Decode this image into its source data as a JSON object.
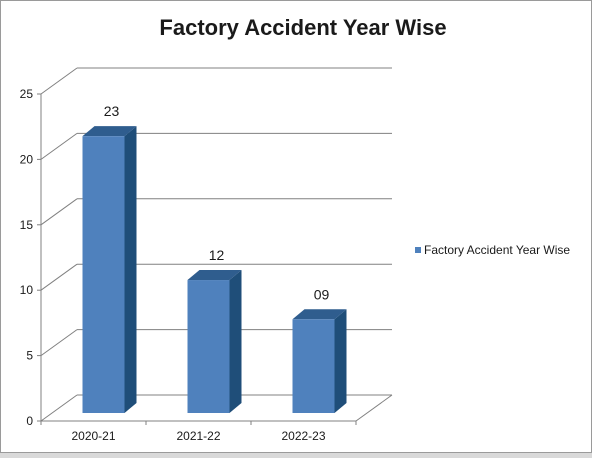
{
  "chart_data": {
    "type": "bar",
    "title": "Factory Accident Year Wise",
    "categories": [
      "2020-21",
      "2021-22",
      "2022-23"
    ],
    "series": [
      {
        "name": "Factory Accident Year Wise",
        "values": [
          23,
          12,
          9
        ]
      }
    ],
    "data_labels": [
      "23",
      "12",
      "09"
    ],
    "y_ticks": [
      "0",
      "5",
      "10",
      "15",
      "20",
      "25"
    ],
    "ylim": [
      0,
      25
    ],
    "grid": true,
    "legend_position": "right",
    "style_3d": true,
    "colors": {
      "bar_front": "#4f81bd",
      "bar_side": "#1f4e79",
      "bar_top": "#2f5d8e",
      "grid": "#808080"
    }
  }
}
